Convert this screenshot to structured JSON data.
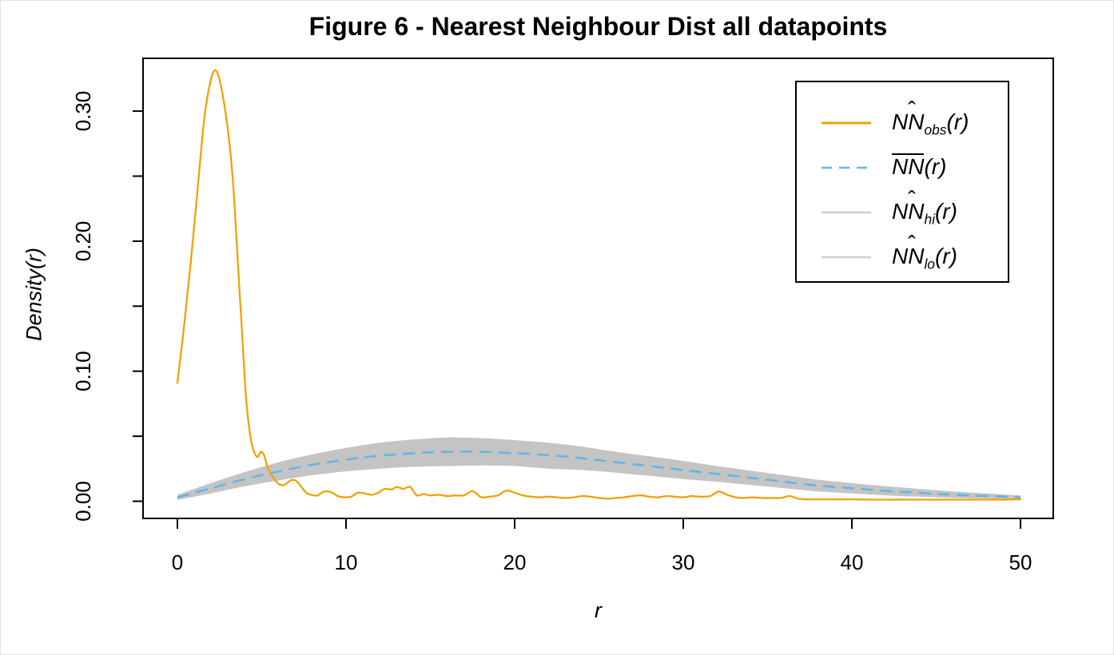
{
  "chart_data": {
    "type": "line",
    "title": "Figure 6 - Nearest Neighbour Dist all datapoints",
    "xlabel": "r",
    "ylabel": "Density(r)",
    "xlim": [
      0,
      50
    ],
    "ylim": [
      0,
      0.34
    ],
    "grid": false,
    "legend_position": "top-right",
    "xticks": [
      0,
      10,
      20,
      30,
      40,
      50
    ],
    "xtick_labels": [
      "0",
      "10",
      "20",
      "30",
      "40",
      "50"
    ],
    "yticks_all": [
      0,
      0.05,
      0.1,
      0.15,
      0.2,
      0.25,
      0.3
    ],
    "yticks_labeled": [
      0,
      0.1,
      0.2,
      0.3
    ],
    "ytick_labels": [
      "0.00",
      "0.10",
      "0.20",
      "0.30"
    ],
    "colors": {
      "obs_line": "#F0A202",
      "mean_line": "#63B5E6",
      "envelope_fill": "#C4C4C4",
      "legend_gray_line": "#CFCFCF",
      "axis": "#000000"
    },
    "series": [
      {
        "name": "NN_obs",
        "style": "solid",
        "color": "#F0A202",
        "r": [
          0,
          0.4,
          0.8,
          1.2,
          1.6,
          2.0,
          2.3,
          2.6,
          3.0,
          3.3,
          3.6,
          3.9,
          4.1,
          4.35,
          4.55,
          4.75,
          4.95,
          5.15,
          5.35,
          5.55,
          5.8,
          6.1,
          6.4,
          6.7,
          7.0,
          7.3,
          7.6,
          7.9,
          8.3,
          8.7,
          9.1,
          9.5,
          9.9,
          10.3,
          10.7,
          11.1,
          11.5,
          11.9,
          12.3,
          12.7,
          13.0,
          13.4,
          13.8,
          14.2,
          14.6,
          15.0,
          15.5,
          16.0,
          16.5,
          17.0,
          17.5,
          18.0,
          18.5,
          19.0,
          19.5,
          20.0,
          20.5,
          21.0,
          21.5,
          22.0,
          22.5,
          23.0,
          23.5,
          24.0,
          24.5,
          25.0,
          25.5,
          26.0,
          26.5,
          27.0,
          27.5,
          28.0,
          28.5,
          29.0,
          29.5,
          30.0,
          30.5,
          31.0,
          31.6,
          32.1,
          32.6,
          33.1,
          33.6,
          34.1,
          34.6,
          35.2,
          35.8,
          36.3,
          36.8,
          37.4,
          38.0,
          39.0,
          40.0,
          41.0,
          42.0,
          43.0,
          44.0,
          45.0,
          46.0,
          47.0,
          48.0,
          49.0,
          50.0
        ],
        "values": [
          0.091,
          0.135,
          0.185,
          0.24,
          0.295,
          0.325,
          0.331,
          0.318,
          0.285,
          0.245,
          0.18,
          0.115,
          0.075,
          0.048,
          0.038,
          0.034,
          0.038,
          0.035,
          0.026,
          0.021,
          0.016,
          0.0125,
          0.013,
          0.016,
          0.016,
          0.012,
          0.007,
          0.005,
          0.0045,
          0.0075,
          0.007,
          0.004,
          0.003,
          0.0035,
          0.0065,
          0.006,
          0.005,
          0.0065,
          0.0095,
          0.009,
          0.011,
          0.0095,
          0.011,
          0.0045,
          0.0055,
          0.0045,
          0.005,
          0.004,
          0.0045,
          0.0045,
          0.0078,
          0.0032,
          0.0035,
          0.0045,
          0.0082,
          0.0065,
          0.0045,
          0.0035,
          0.003,
          0.0035,
          0.003,
          0.0025,
          0.003,
          0.004,
          0.0035,
          0.0025,
          0.002,
          0.0025,
          0.003,
          0.004,
          0.0045,
          0.0035,
          0.003,
          0.004,
          0.0035,
          0.003,
          0.004,
          0.0035,
          0.004,
          0.0075,
          0.005,
          0.003,
          0.0025,
          0.003,
          0.0025,
          0.0025,
          0.0025,
          0.004,
          0.002,
          0.0015,
          0.0015,
          0.0015,
          0.0015,
          0.0012,
          0.0012,
          0.0012,
          0.0012,
          0.0012,
          0.0012,
          0.0012,
          0.0012,
          0.0012,
          0.0015
        ]
      },
      {
        "name": "NN_mean",
        "style": "dashed",
        "color": "#63B5E6",
        "r": [
          0,
          2,
          4,
          6,
          8,
          10,
          12,
          14,
          16,
          18,
          20,
          22,
          24,
          26,
          28,
          30,
          32,
          34,
          36,
          38,
          40,
          42,
          44,
          46,
          48,
          50
        ],
        "values": [
          0.003,
          0.01,
          0.017,
          0.023,
          0.028,
          0.032,
          0.035,
          0.037,
          0.038,
          0.038,
          0.037,
          0.0355,
          0.033,
          0.03,
          0.027,
          0.024,
          0.021,
          0.018,
          0.015,
          0.012,
          0.01,
          0.008,
          0.0065,
          0.005,
          0.004,
          0.003
        ]
      }
    ],
    "envelope": {
      "fill": "#C4C4C4",
      "r": [
        0,
        2,
        4,
        6,
        8,
        10,
        12,
        14,
        16,
        18,
        20,
        22,
        24,
        26,
        28,
        30,
        32,
        34,
        36,
        38,
        40,
        42,
        44,
        46,
        48,
        50
      ],
      "hi": [
        0.005,
        0.014,
        0.0225,
        0.03,
        0.036,
        0.041,
        0.045,
        0.0475,
        0.049,
        0.0485,
        0.047,
        0.045,
        0.042,
        0.038,
        0.0345,
        0.031,
        0.027,
        0.0235,
        0.02,
        0.0165,
        0.014,
        0.0115,
        0.0095,
        0.0075,
        0.006,
        0.0045
      ],
      "lo": [
        0.001,
        0.006,
        0.0115,
        0.016,
        0.02,
        0.023,
        0.025,
        0.0265,
        0.027,
        0.0275,
        0.027,
        0.025,
        0.024,
        0.022,
        0.0195,
        0.017,
        0.015,
        0.0125,
        0.01,
        0.0075,
        0.006,
        0.0045,
        0.0035,
        0.0025,
        0.002,
        0.0015
      ]
    },
    "legend": {
      "entries": [
        {
          "key": "obs",
          "base": "NN",
          "accent": "hat",
          "sub": "obs",
          "arg": "(r)",
          "line_color": "#F0A202",
          "dashed": false
        },
        {
          "key": "mean",
          "base": "NN",
          "accent": "bar",
          "sub": "",
          "arg": "(r)",
          "line_color": "#63B5E6",
          "dashed": true
        },
        {
          "key": "hi",
          "base": "NN",
          "accent": "hat",
          "sub": "hi",
          "arg": "(r)",
          "line_color": "#CFCFCF",
          "dashed": false
        },
        {
          "key": "lo",
          "base": "NN",
          "accent": "hat",
          "sub": "lo",
          "arg": "(r)",
          "line_color": "#CFCFCF",
          "dashed": false
        }
      ]
    }
  }
}
